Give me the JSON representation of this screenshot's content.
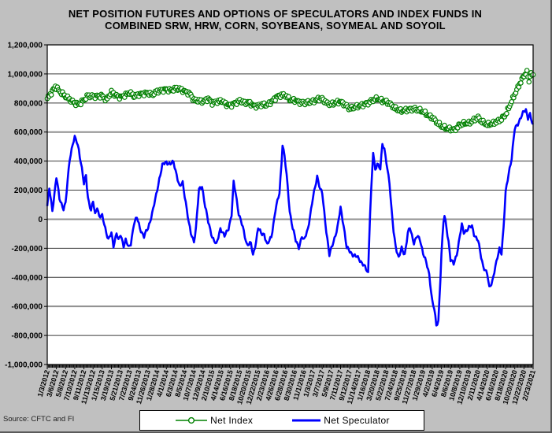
{
  "title": {
    "line1": "NET POSITION FUTURES AND OPTIONS OF SPECULATORS AND INDEX FUNDS IN",
    "line2": "COMBINED SRW, HRW, CORN, SOYBEANS, SOYMEAL AND SOYOIL"
  },
  "source_note": "Source: CFTC and FI",
  "legend": {
    "items": [
      {
        "label": "Net Index",
        "color": "#008000",
        "marker": "circle-line"
      },
      {
        "label": "Net Speculator",
        "color": "#0000ff",
        "marker": "line"
      }
    ]
  },
  "colors": {
    "background": "#c0c0c0",
    "plot_background": "#ffffff",
    "net_index": "#008000",
    "net_speculator": "#0000ff",
    "gridline_minor": "#3a3a3a",
    "gridline_major": "#909090",
    "axis": "#000000"
  },
  "chart_data": {
    "type": "line",
    "title": "NET POSITION FUTURES AND OPTIONS OF SPECULATORS AND INDEX FUNDS IN COMBINED SRW, HRW, CORN, SOYBEANS, SOYMEAL AND SOYOIL",
    "x_axis": {
      "kind": "weekly dates",
      "start_label": "1/3/2012",
      "end_label": "2/23/2021",
      "weeks_total": 477,
      "label_every_n_weeks": 9,
      "tick_labels": [
        "1/3/2012",
        "3/6/2012",
        "5/8/2012",
        "7/10/2012",
        "9/11/2012",
        "11/13/2012",
        "1/15/2013",
        "3/19/2013",
        "5/21/2013",
        "7/23/2013",
        "9/24/2013",
        "11/26/2013",
        "1/28/2014",
        "4/1/2014",
        "6/3/2014",
        "8/5/2014",
        "10/7/2014",
        "12/9/2014",
        "2/10/2015",
        "4/14/2015",
        "6/16/2015",
        "8/18/2015",
        "10/20/2015",
        "12/22/2015",
        "2/23/2016",
        "4/26/2016",
        "6/28/2016",
        "8/30/2016",
        "11/1/2016",
        "1/3/2017",
        "3/7/2017",
        "5/9/2017",
        "7/11/2017",
        "9/12/2017",
        "11/14/2017",
        "1/16/2018",
        "3/20/2018",
        "5/22/2018",
        "7/24/2018",
        "9/25/2018",
        "11/27/2018",
        "1/29/2019",
        "4/2/2019",
        "6/4/2019",
        "8/6/2019",
        "10/8/2019",
        "12/10/2019",
        "2/11/2020",
        "4/14/2020",
        "6/16/2020",
        "8/18/2020",
        "10/20/2020",
        "12/22/2020",
        "2/23/2021"
      ]
    },
    "y_axis": {
      "min": -1000000,
      "max": 1200000,
      "step": 200000,
      "major_gray_lines_at": [
        600000,
        0,
        -600000
      ],
      "tick_labels": [
        "1,200,000",
        "1,000,000",
        "800,000",
        "600,000",
        "400,000",
        "200,000",
        "0",
        "-200,000",
        "-400,000",
        "-600,000",
        "-800,000",
        "-1,000,000"
      ]
    },
    "unit_multiplier": 1000,
    "series": [
      {
        "name": "Net Index",
        "color": "#008000",
        "marker": "open-circle",
        "points": [
          [
            0,
            830
          ],
          [
            4,
            870
          ],
          [
            8,
            915
          ],
          [
            12,
            880
          ],
          [
            18,
            845
          ],
          [
            27,
            800
          ],
          [
            31,
            790
          ],
          [
            36,
            820
          ],
          [
            40,
            850
          ],
          [
            45,
            845
          ],
          [
            54,
            850
          ],
          [
            58,
            820
          ],
          [
            63,
            875
          ],
          [
            68,
            850
          ],
          [
            72,
            840
          ],
          [
            81,
            870
          ],
          [
            86,
            845
          ],
          [
            90,
            860
          ],
          [
            99,
            870
          ],
          [
            103,
            855
          ],
          [
            108,
            880
          ],
          [
            117,
            895
          ],
          [
            122,
            885
          ],
          [
            126,
            900
          ],
          [
            131,
            895
          ],
          [
            135,
            880
          ],
          [
            140,
            865
          ],
          [
            144,
            820
          ],
          [
            153,
            810
          ],
          [
            158,
            830
          ],
          [
            162,
            800
          ],
          [
            171,
            815
          ],
          [
            176,
            790
          ],
          [
            180,
            785
          ],
          [
            185,
            800
          ],
          [
            189,
            815
          ],
          [
            194,
            800
          ],
          [
            198,
            805
          ],
          [
            203,
            780
          ],
          [
            207,
            780
          ],
          [
            212,
            790
          ],
          [
            216,
            785
          ],
          [
            221,
            815
          ],
          [
            225,
            840
          ],
          [
            230,
            855
          ],
          [
            234,
            850
          ],
          [
            239,
            820
          ],
          [
            243,
            820
          ],
          [
            248,
            805
          ],
          [
            252,
            800
          ],
          [
            257,
            805
          ],
          [
            261,
            810
          ],
          [
            266,
            830
          ],
          [
            270,
            830
          ],
          [
            275,
            795
          ],
          [
            279,
            790
          ],
          [
            284,
            805
          ],
          [
            288,
            810
          ],
          [
            293,
            785
          ],
          [
            297,
            760
          ],
          [
            302,
            770
          ],
          [
            306,
            780
          ],
          [
            311,
            790
          ],
          [
            315,
            800
          ],
          [
            320,
            820
          ],
          [
            324,
            830
          ],
          [
            329,
            815
          ],
          [
            333,
            810
          ],
          [
            338,
            785
          ],
          [
            342,
            760
          ],
          [
            347,
            745
          ],
          [
            351,
            750
          ],
          [
            356,
            755
          ],
          [
            360,
            760
          ],
          [
            365,
            750
          ],
          [
            369,
            740
          ],
          [
            374,
            715
          ],
          [
            378,
            700
          ],
          [
            383,
            665
          ],
          [
            387,
            640
          ],
          [
            392,
            625
          ],
          [
            396,
            620
          ],
          [
            400,
            615
          ],
          [
            405,
            650
          ],
          [
            410,
            660
          ],
          [
            414,
            660
          ],
          [
            419,
            685
          ],
          [
            423,
            700
          ],
          [
            427,
            670
          ],
          [
            432,
            650
          ],
          [
            436,
            655
          ],
          [
            441,
            670
          ],
          [
            446,
            690
          ],
          [
            450,
            720
          ],
          [
            454,
            780
          ],
          [
            459,
            860
          ],
          [
            463,
            920
          ],
          [
            466,
            960
          ],
          [
            468,
            990
          ],
          [
            471,
            1010
          ],
          [
            473,
            950
          ],
          [
            475,
            1015
          ],
          [
            476,
            975
          ],
          [
            477,
            1000
          ]
        ]
      },
      {
        "name": "Net Speculator",
        "color": "#0000ff",
        "marker": "none",
        "points": [
          [
            0,
            90
          ],
          [
            2,
            210
          ],
          [
            5,
            60
          ],
          [
            9,
            290
          ],
          [
            12,
            140
          ],
          [
            16,
            75
          ],
          [
            18,
            110
          ],
          [
            22,
            415
          ],
          [
            25,
            520
          ],
          [
            27,
            560
          ],
          [
            29,
            530
          ],
          [
            31,
            480
          ],
          [
            34,
            350
          ],
          [
            36,
            240
          ],
          [
            38,
            300
          ],
          [
            40,
            150
          ],
          [
            43,
            60
          ],
          [
            45,
            120
          ],
          [
            47,
            30
          ],
          [
            49,
            90
          ],
          [
            51,
            20
          ],
          [
            54,
            20
          ],
          [
            57,
            -60
          ],
          [
            60,
            -140
          ],
          [
            63,
            -100
          ],
          [
            65,
            -185
          ],
          [
            68,
            -90
          ],
          [
            70,
            -150
          ],
          [
            72,
            -110
          ],
          [
            75,
            -180
          ],
          [
            77,
            -140
          ],
          [
            80,
            -200
          ],
          [
            82,
            -170
          ],
          [
            85,
            -30
          ],
          [
            88,
            10
          ],
          [
            91,
            -60
          ],
          [
            95,
            -120
          ],
          [
            99,
            -60
          ],
          [
            103,
            40
          ],
          [
            106,
            130
          ],
          [
            110,
            280
          ],
          [
            113,
            370
          ],
          [
            117,
            395
          ],
          [
            121,
            380
          ],
          [
            124,
            390
          ],
          [
            127,
            310
          ],
          [
            130,
            220
          ],
          [
            133,
            250
          ],
          [
            136,
            120
          ],
          [
            139,
            -30
          ],
          [
            141,
            -100
          ],
          [
            144,
            -150
          ],
          [
            146,
            -60
          ],
          [
            149,
            200
          ],
          [
            152,
            230
          ],
          [
            155,
            90
          ],
          [
            158,
            -20
          ],
          [
            162,
            -120
          ],
          [
            166,
            -180
          ],
          [
            170,
            -60
          ],
          [
            174,
            -120
          ],
          [
            178,
            -60
          ],
          [
            181,
            30
          ],
          [
            183,
            250
          ],
          [
            185,
            180
          ],
          [
            188,
            40
          ],
          [
            192,
            -60
          ],
          [
            196,
            -170
          ],
          [
            200,
            -170
          ],
          [
            202,
            -250
          ],
          [
            205,
            -150
          ],
          [
            207,
            -60
          ],
          [
            210,
            -100
          ],
          [
            213,
            -100
          ],
          [
            216,
            -180
          ],
          [
            220,
            -120
          ],
          [
            224,
            60
          ],
          [
            228,
            180
          ],
          [
            230,
            390
          ],
          [
            231,
            520
          ],
          [
            233,
            430
          ],
          [
            235,
            300
          ],
          [
            238,
            60
          ],
          [
            241,
            -60
          ],
          [
            244,
            -150
          ],
          [
            247,
            -190
          ],
          [
            250,
            -120
          ],
          [
            252,
            -150
          ],
          [
            256,
            -60
          ],
          [
            259,
            60
          ],
          [
            261,
            150
          ],
          [
            265,
            300
          ],
          [
            268,
            200
          ],
          [
            270,
            180
          ],
          [
            274,
            -80
          ],
          [
            277,
            -250
          ],
          [
            281,
            -150
          ],
          [
            285,
            -60
          ],
          [
            288,
            80
          ],
          [
            291,
            -40
          ],
          [
            294,
            -200
          ],
          [
            297,
            -220
          ],
          [
            301,
            -250
          ],
          [
            306,
            -270
          ],
          [
            310,
            -310
          ],
          [
            315,
            -370
          ],
          [
            317,
            50
          ],
          [
            320,
            460
          ],
          [
            322,
            330
          ],
          [
            324,
            390
          ],
          [
            327,
            350
          ],
          [
            329,
            510
          ],
          [
            331,
            480
          ],
          [
            333,
            400
          ],
          [
            336,
            250
          ],
          [
            338,
            60
          ],
          [
            340,
            -80
          ],
          [
            342,
            -180
          ],
          [
            345,
            -270
          ],
          [
            348,
            -200
          ],
          [
            351,
            -240
          ],
          [
            354,
            -100
          ],
          [
            356,
            -60
          ],
          [
            360,
            -160
          ],
          [
            363,
            -120
          ],
          [
            366,
            -140
          ],
          [
            369,
            -230
          ],
          [
            372,
            -300
          ],
          [
            375,
            -380
          ],
          [
            378,
            -560
          ],
          [
            380,
            -620
          ],
          [
            382,
            -735
          ],
          [
            384,
            -700
          ],
          [
            386,
            -400
          ],
          [
            387,
            -240
          ],
          [
            389,
            -20
          ],
          [
            390,
            20
          ],
          [
            392,
            -60
          ],
          [
            394,
            -150
          ],
          [
            396,
            -280
          ],
          [
            399,
            -310
          ],
          [
            402,
            -240
          ],
          [
            405,
            -120
          ],
          [
            407,
            -40
          ],
          [
            409,
            -90
          ],
          [
            414,
            -60
          ],
          [
            417,
            -50
          ],
          [
            419,
            -100
          ],
          [
            423,
            -150
          ],
          [
            426,
            -260
          ],
          [
            428,
            -320
          ],
          [
            432,
            -380
          ],
          [
            434,
            -475
          ],
          [
            437,
            -420
          ],
          [
            441,
            -300
          ],
          [
            444,
            -200
          ],
          [
            446,
            -230
          ],
          [
            448,
            -60
          ],
          [
            450,
            180
          ],
          [
            453,
            320
          ],
          [
            456,
            420
          ],
          [
            459,
            620
          ],
          [
            462,
            660
          ],
          [
            465,
            700
          ],
          [
            468,
            740
          ],
          [
            470,
            755
          ],
          [
            472,
            700
          ],
          [
            474,
            720
          ],
          [
            476,
            660
          ],
          [
            477,
            640
          ]
        ]
      }
    ]
  }
}
